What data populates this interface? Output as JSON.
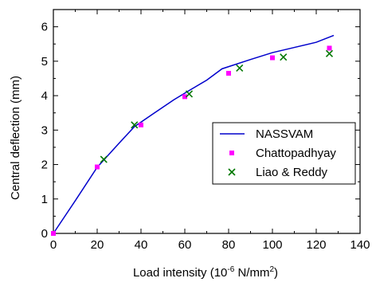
{
  "chart_data": {
    "type": "scatter",
    "xlabel_prefix": "Load intensity (10",
    "xlabel_sup1": "-6",
    "xlabel_mid": " N/mm",
    "xlabel_sup2": "2",
    "xlabel_suffix": ")",
    "ylabel": "Central deflection (mm)",
    "xlim": [
      0,
      140
    ],
    "ylim": [
      0,
      6.5
    ],
    "x_ticks": [
      0,
      20,
      40,
      60,
      80,
      100,
      120,
      140
    ],
    "y_ticks": [
      0,
      1,
      2,
      3,
      4,
      5,
      6
    ],
    "grid": false,
    "legend_position": "center-right",
    "series": [
      {
        "name": "NASSVAM",
        "kind": "line",
        "color": "#0000cc",
        "x": [
          0,
          10,
          20,
          30,
          37,
          45,
          55,
          62,
          70,
          77,
          90,
          100,
          110,
          120,
          128
        ],
        "y": [
          0,
          0.95,
          1.92,
          2.62,
          3.1,
          3.45,
          3.88,
          4.15,
          4.45,
          4.78,
          5.05,
          5.25,
          5.4,
          5.55,
          5.75
        ]
      },
      {
        "name": "Chattopadhyay",
        "kind": "square",
        "color": "#ff00ff",
        "x": [
          0,
          20,
          40,
          60,
          80,
          100,
          126
        ],
        "y": [
          0,
          1.93,
          3.15,
          3.97,
          4.65,
          5.1,
          5.38
        ]
      },
      {
        "name": "Liao & Reddy",
        "kind": "cross",
        "color": "#007700",
        "x": [
          23,
          37,
          62,
          85,
          105,
          126
        ],
        "y": [
          2.15,
          3.15,
          4.05,
          4.8,
          5.12,
          5.22
        ]
      }
    ]
  }
}
